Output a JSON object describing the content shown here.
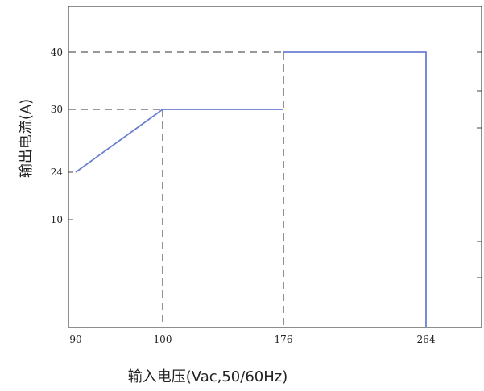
{
  "chart_data": {
    "type": "line",
    "xlabel": "输入电压(Vac,50/60Hz)",
    "ylabel": "输出电流(A)",
    "x_ticks": [
      {
        "value": 90,
        "label": "90"
      },
      {
        "value": 100,
        "label": "100"
      },
      {
        "value": 176,
        "label": "176"
      },
      {
        "value": 264,
        "label": "264"
      }
    ],
    "y_ticks": [
      {
        "value": 40,
        "label": "40"
      },
      {
        "value": 30,
        "label": "30"
      },
      {
        "value": 24,
        "label": "24"
      },
      {
        "value": 10,
        "label": "10"
      }
    ],
    "series": [
      {
        "color": "#6b7fd0",
        "points": [
          {
            "x": 90,
            "y": 24
          },
          {
            "x": 100,
            "y": 30
          },
          {
            "x": 176,
            "y": 30
          }
        ]
      },
      {
        "color": "#6b7fd0",
        "points": [
          {
            "x": 176,
            "y": 40
          },
          {
            "x": 264,
            "y": 40
          },
          {
            "x": 264,
            "y": 0
          }
        ]
      }
    ],
    "reference_lines": [
      {
        "from": {
          "x": 90,
          "y": 40
        },
        "to": {
          "x": 176,
          "y": 40
        }
      },
      {
        "from": {
          "x": 90,
          "y": 30
        },
        "to": {
          "x": 100,
          "y": 30
        }
      },
      {
        "from": {
          "x": 100,
          "y": 30
        },
        "to": {
          "x": 100,
          "y": 0
        }
      },
      {
        "from": {
          "x": 176,
          "y": 40
        },
        "to": {
          "x": 176,
          "y": 0
        }
      }
    ],
    "grid": false,
    "legend": "none"
  }
}
